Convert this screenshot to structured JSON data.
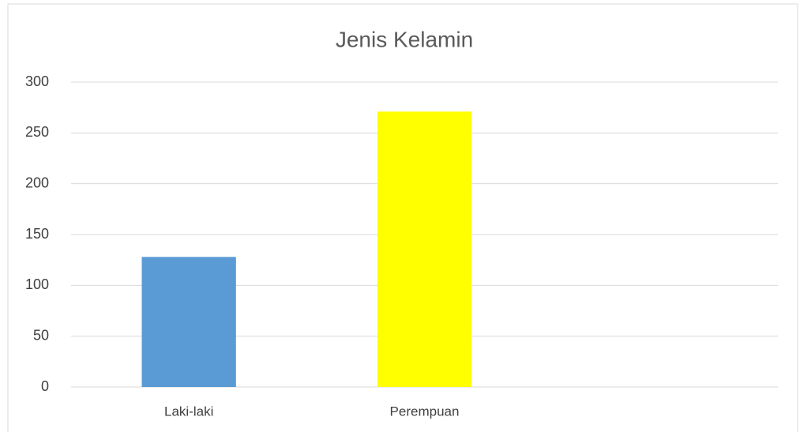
{
  "chart_data": {
    "type": "bar",
    "title": "Jenis Kelamin",
    "categories": [
      "Laki-laki",
      "Perempuan",
      null
    ],
    "values": [
      128,
      271,
      null
    ],
    "colors": [
      "#5b9bd5",
      "#ffff00",
      null
    ],
    "ylim": [
      0,
      300
    ],
    "yticks": [
      0,
      50,
      100,
      150,
      200,
      250,
      300
    ],
    "grid": true
  }
}
